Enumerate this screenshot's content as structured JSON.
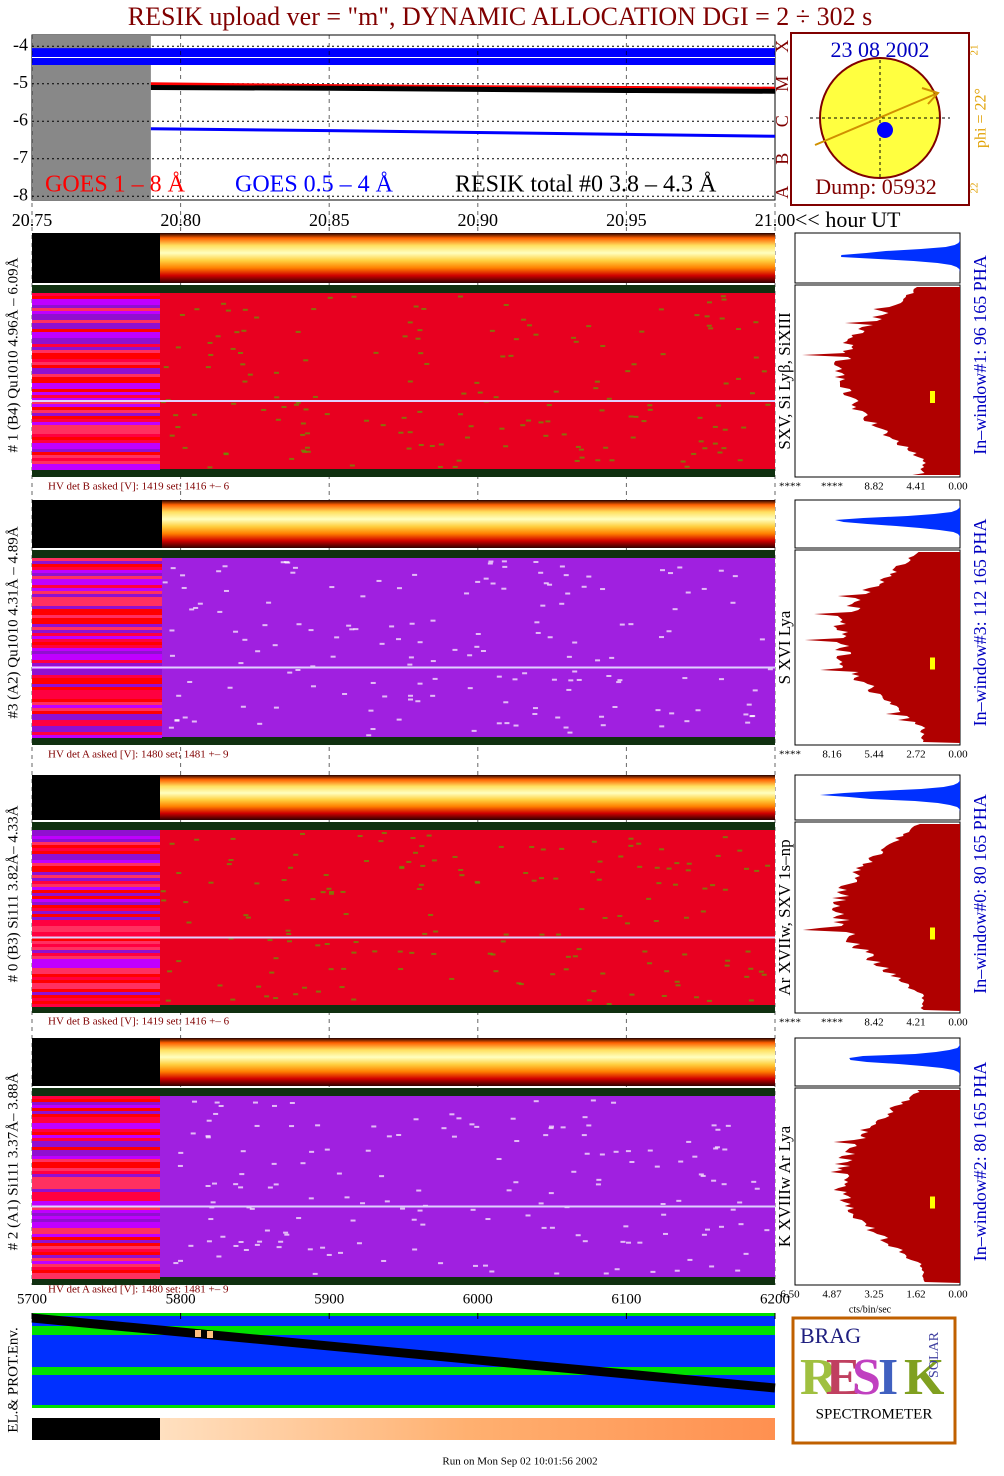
{
  "title": "RESIK upload ver = \"m\", DYNAMIC ALLOCATION  DGI =   2 ÷ 302 s",
  "date_box": {
    "date": "23 08 2002",
    "phi": "phi = 22°",
    "dump": "Dump: 05932",
    "classes": [
      "A",
      "B",
      "C",
      "M",
      "X"
    ],
    "scale": [
      "21",
      "22"
    ]
  },
  "chart_data": [
    {
      "type": "line",
      "xlabel": "<< hour UT",
      "x": [
        20.79,
        20.85,
        20.9,
        20.95,
        21.0
      ],
      "series": [
        {
          "name": "GOES 1 – 8 Å",
          "color": "#ff0000",
          "values": [
            -5.0,
            -5.05,
            -5.08,
            -5.1,
            -5.12
          ]
        },
        {
          "name": "GOES 0.5 – 4 Å",
          "color": "#0000ff",
          "values": [
            -6.2,
            -6.25,
            -6.3,
            -6.35,
            -6.4
          ]
        },
        {
          "name": "RESIK total #0  3.8 – 4.3 Å",
          "color": "#000000",
          "values": [
            -5.1,
            -5.12,
            -5.15,
            -5.18,
            -5.2
          ]
        }
      ],
      "xlim": [
        20.75,
        21.0
      ],
      "xticks": [
        20.75,
        {
          "value": 20.8,
          "label": "20.80"
        },
        20.85,
        {
          "value": 20.9,
          "label": "20.90"
        },
        20.95,
        {
          "value": 21.0,
          "label": "21.00"
        }
      ],
      "ylim": [
        -8.1,
        -3.7
      ],
      "yticks": [
        -4,
        -5,
        -6,
        -7,
        -8
      ],
      "grid": true
    },
    {
      "type": "band",
      "ylabel": "EL.& PROT.Env.",
      "xlim": [
        5700,
        6200
      ],
      "xticks": [
        5700,
        5800,
        5900,
        6000,
        6100,
        6200
      ]
    }
  ],
  "panels": [
    {
      "label": "# 1 (B4) Qu1010 4.96Å – 6.09Å",
      "lines": "SXV, Si Lyβ, SiXIII",
      "hv": "HV det B asked [V]:  1419 set:  1416 +–    6",
      "window": "In–window#1:   96 165  PHA",
      "hist_ticks": [
        "****",
        "****",
        "8.82",
        "4.41",
        "0.00"
      ],
      "mode": "red"
    },
    {
      "label": "#3 (A2) Qu1010  4.31Å – 4.89Å",
      "lines": "S XVI Lya",
      "hv": "HV det A asked [V]:  1480 set:  1481 +–    9",
      "window": "In–window#3:  112 165  PHA",
      "hist_ticks": [
        "****",
        "8.16",
        "5.44",
        "2.72",
        "0.00"
      ],
      "mode": "purple"
    },
    {
      "label": "# 0 (B3) Si111  3.82Å– 4.33Å",
      "lines": "Ar XVIIw,  SXV 1s–np",
      "hv": "HV det B asked [V]:  1419 set:  1416 +–    6",
      "window": "In–window#0:   80 165  PHA",
      "hist_ticks": [
        "****",
        "****",
        "8.42",
        "4.21",
        "0.00"
      ],
      "mode": "red"
    },
    {
      "label": "# 2 (A1) Si111  3.37Å– 3.88Å",
      "lines": "K XVIIIw  Ar Lya",
      "hv": "HV det A asked [V]:  1480 set:  1481 +–    9",
      "window": "In–window#2:   80 165  PHA",
      "hist_ticks": [
        "6.50",
        "4.87",
        "3.25",
        "1.62",
        "0.00"
      ],
      "mode": "purple"
    }
  ],
  "hist_xlabel": "cts/bin/sec",
  "logo": {
    "top": "BRAG",
    "letters": [
      "R",
      "E",
      "S",
      "I",
      "K"
    ],
    "side": "SOLAR",
    "caption": "SPECTROMETER"
  },
  "footer": "Run on Mon Sep 02 10:01:56 2002"
}
